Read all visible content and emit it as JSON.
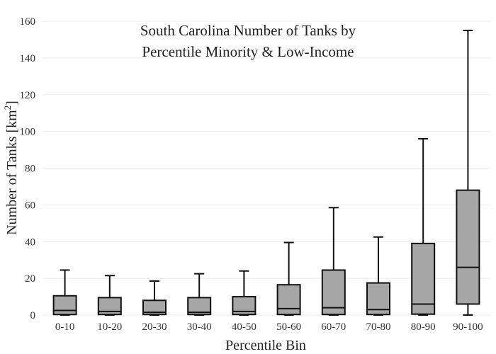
{
  "chart_data": {
    "type": "box",
    "title_line1": "South Carolina Number of Tanks by",
    "title_line2": "Percentile Minority & Low-Income",
    "xlabel": "Percentile Bin",
    "ylabel": "Number of Tanks  [km",
    "ylabel_sup": "2",
    "ylabel_close": "]",
    "ylim": [
      0,
      160
    ],
    "yticks": [
      0,
      20,
      40,
      60,
      80,
      100,
      120,
      140,
      160
    ],
    "grid": true,
    "colors": {
      "box_fill": "#a6a6a6",
      "outline": "#111111",
      "grid": "#ebebeb"
    },
    "boxes": [
      {
        "label": "0-10",
        "min": 0,
        "q1": 0.3,
        "median": 2.5,
        "q3": 10.5,
        "max": 24.5
      },
      {
        "label": "10-20",
        "min": 0,
        "q1": 0.3,
        "median": 2.0,
        "q3": 9.5,
        "max": 21.5
      },
      {
        "label": "20-30",
        "min": 0,
        "q1": 0.3,
        "median": 1.5,
        "q3": 8.0,
        "max": 18.5
      },
      {
        "label": "30-40",
        "min": 0,
        "q1": 0.3,
        "median": 1.5,
        "q3": 9.5,
        "max": 22.5
      },
      {
        "label": "40-50",
        "min": 0,
        "q1": 0.3,
        "median": 2.0,
        "q3": 10.0,
        "max": 24.0
      },
      {
        "label": "50-60",
        "min": 0,
        "q1": 0.3,
        "median": 3.5,
        "q3": 16.5,
        "max": 39.5
      },
      {
        "label": "60-70",
        "min": 0,
        "q1": 0.3,
        "median": 4.0,
        "q3": 24.5,
        "max": 58.5
      },
      {
        "label": "70-80",
        "min": 0,
        "q1": 0.3,
        "median": 3.0,
        "q3": 17.5,
        "max": 42.5
      },
      {
        "label": "80-90",
        "min": 0,
        "q1": 0.5,
        "median": 6.0,
        "q3": 39.0,
        "max": 96.0
      },
      {
        "label": "90-100",
        "min": 0,
        "q1": 6.0,
        "median": 26.0,
        "q3": 68.0,
        "max": 155.0
      }
    ]
  }
}
